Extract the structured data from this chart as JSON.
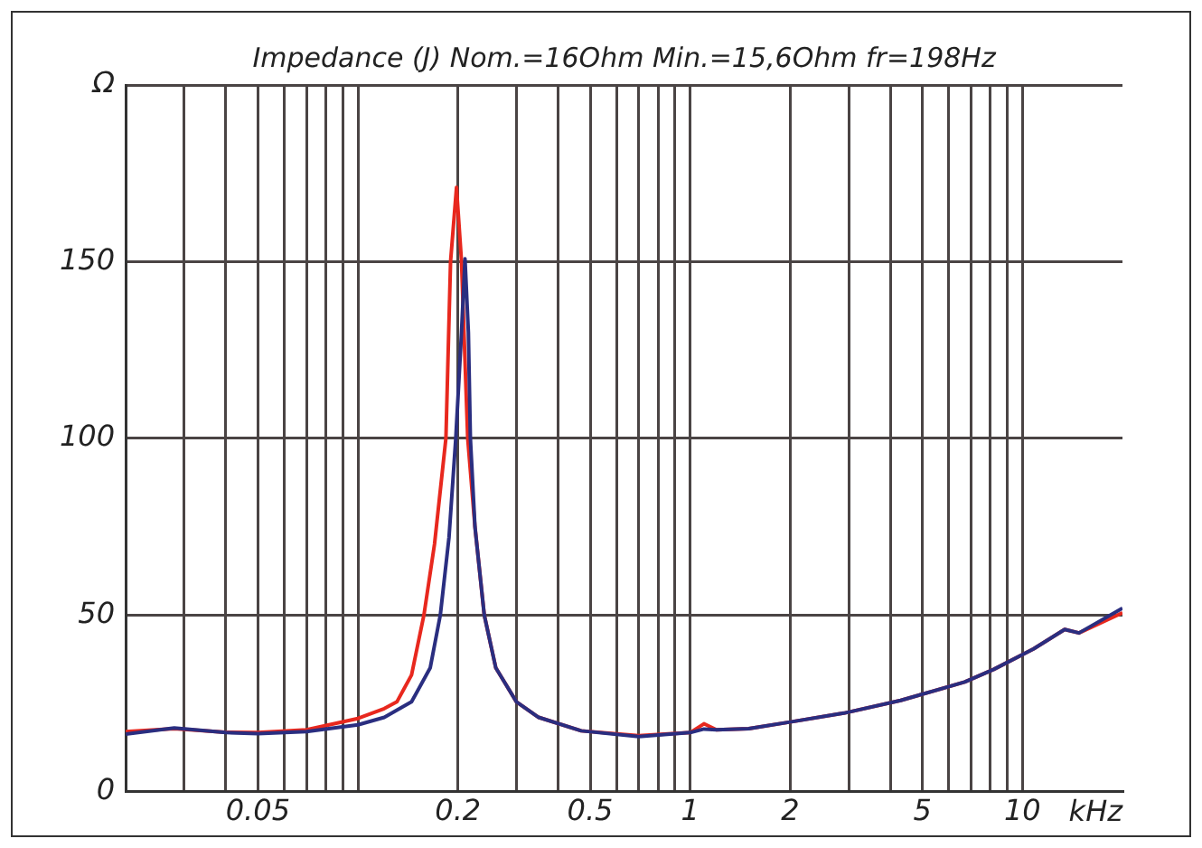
{
  "chart_data": {
    "type": "line",
    "title": "Impedance (J) Nom.=16Ohm Min.=15,6Ohm fr=198Hz",
    "xlabel": "kHz",
    "log": "x",
    "grid": true,
    "legend": false,
    "marker": "none",
    "line_style": "solid",
    "xlim": [
      0.02,
      20
    ],
    "ylim": [
      0,
      200
    ],
    "xticks": [
      {
        "value": 0.03,
        "label": null
      },
      {
        "value": 0.04,
        "label": null
      },
      0.05,
      {
        "value": 0.06,
        "label": null
      },
      {
        "value": 0.07,
        "label": null
      },
      {
        "value": 0.08,
        "label": null
      },
      {
        "value": 0.09,
        "label": null
      },
      {
        "value": 0.1,
        "label": null
      },
      0.2,
      {
        "value": 0.3,
        "label": null
      },
      {
        "value": 0.4,
        "label": null
      },
      0.5,
      {
        "value": 0.6,
        "label": null
      },
      {
        "value": 0.7,
        "label": null
      },
      {
        "value": 0.8,
        "label": null
      },
      {
        "value": 0.9,
        "label": null
      },
      1,
      2,
      {
        "value": 3,
        "label": null
      },
      {
        "value": 4,
        "label": null
      },
      5,
      {
        "value": 6,
        "label": null
      },
      {
        "value": 7,
        "label": null
      },
      {
        "value": 8,
        "label": null
      },
      {
        "value": 9,
        "label": null
      },
      10
    ],
    "yticks": [
      0,
      50,
      100,
      150,
      {
        "value": 200,
        "label": "Ω"
      }
    ],
    "series": [
      {
        "color": "#e8281e",
        "x": [
          0.02,
          0.028,
          0.04,
          0.05,
          0.07,
          0.1,
          0.12,
          0.131,
          0.145,
          0.158,
          0.17,
          0.184,
          0.19,
          0.198,
          0.205,
          0.214,
          0.225,
          0.24,
          0.26,
          0.3,
          0.35,
          0.47,
          0.7,
          1.0,
          1.1,
          1.2,
          1.5,
          2.0,
          2.9,
          4.3,
          6.7,
          8.2,
          10.8,
          13.4,
          14.8,
          20
        ],
        "values": [
          17,
          17.8,
          16.8,
          16.7,
          17.5,
          20.7,
          23.5,
          25.4,
          33,
          50,
          70,
          100,
          150,
          171,
          150,
          100,
          75,
          50,
          35,
          25.4,
          21,
          17.2,
          15.8,
          16.7,
          19.2,
          17.5,
          17.8,
          19.7,
          22.2,
          25.8,
          31,
          34.6,
          40.4,
          45.9,
          44.9,
          50.6
        ]
      },
      {
        "color": "#2a2e80",
        "x": [
          0.02,
          0.028,
          0.04,
          0.05,
          0.07,
          0.1,
          0.12,
          0.145,
          0.165,
          0.177,
          0.188,
          0.197,
          0.205,
          0.21,
          0.215,
          0.218,
          0.225,
          0.24,
          0.26,
          0.3,
          0.35,
          0.47,
          0.7,
          1.0,
          1.1,
          1.2,
          1.5,
          2.0,
          2.9,
          4.3,
          6.7,
          8.2,
          10.8,
          13.4,
          14.8,
          20
        ],
        "values": [
          16.3,
          18,
          16.7,
          16.4,
          17,
          18.9,
          21,
          25.4,
          35,
          50,
          72,
          100,
          130,
          150.8,
          130,
          100,
          75,
          50,
          35,
          25.4,
          21,
          17.2,
          15.6,
          16.7,
          17.7,
          17.5,
          17.8,
          19.7,
          22.2,
          25.8,
          31,
          34.6,
          40.4,
          45.9,
          44.9,
          51.9
        ]
      }
    ]
  }
}
